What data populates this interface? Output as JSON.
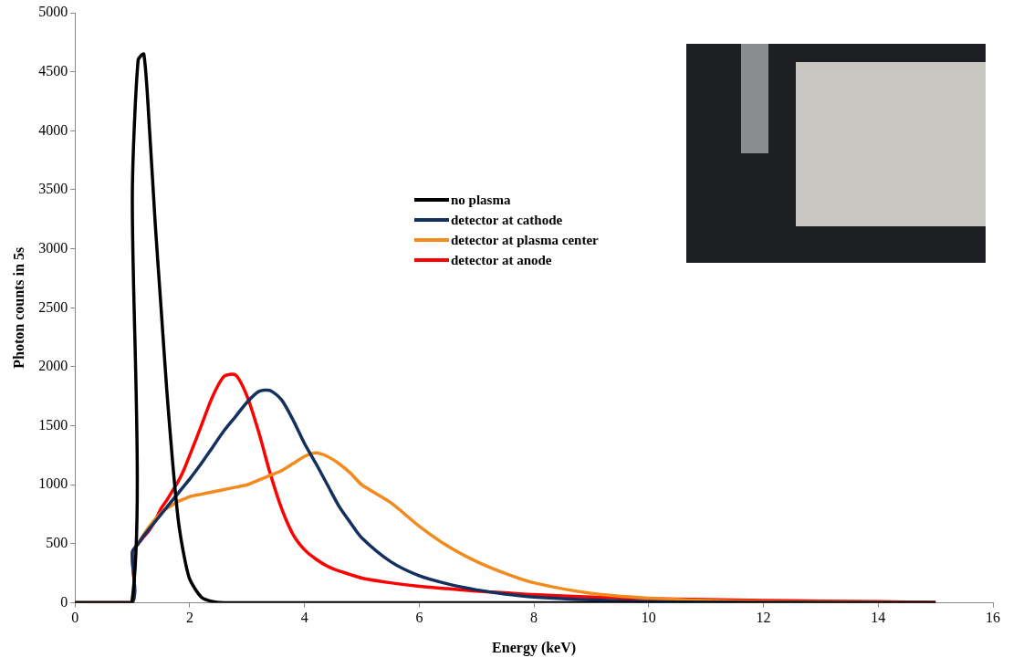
{
  "chart_data": {
    "type": "line",
    "x_label": "Energy (keV)",
    "y_label": "Photon counts in 5s",
    "x": [
      0,
      0.99,
      1.0,
      1.1,
      1.2,
      1.3,
      1.4,
      1.5,
      1.6,
      1.7,
      1.8,
      1.9,
      2.0,
      2.2,
      2.4,
      2.6,
      2.8,
      3.0,
      3.2,
      3.4,
      3.6,
      3.8,
      4.0,
      4.2,
      4.4,
      4.6,
      4.8,
      5.0,
      5.5,
      6,
      6.5,
      7,
      7.5,
      8,
      9,
      10,
      11,
      12,
      13,
      14,
      15
    ],
    "series": [
      {
        "name": "no plasma",
        "color": "#000000",
        "values": [
          0,
          0,
          3500,
          4600,
          4650,
          4000,
          3200,
          2500,
          1800,
          1200,
          700,
          400,
          200,
          50,
          10,
          0,
          0,
          0,
          0,
          0,
          0,
          0,
          0,
          0,
          0,
          0,
          0,
          0,
          0,
          0,
          0,
          0,
          0,
          0,
          0,
          0,
          0,
          0,
          0,
          0,
          0
        ]
      },
      {
        "name": "detector at cathode",
        "color": "#14305f",
        "values": [
          0,
          0,
          430,
          500,
          570,
          630,
          690,
          750,
          810,
          870,
          930,
          990,
          1050,
          1180,
          1320,
          1460,
          1580,
          1700,
          1790,
          1800,
          1720,
          1550,
          1350,
          1180,
          1000,
          820,
          680,
          550,
          350,
          230,
          160,
          110,
          75,
          50,
          25,
          10,
          5,
          3,
          1,
          0,
          0
        ]
      },
      {
        "name": "detector at plasma center",
        "color": "#f28a1e",
        "values": [
          0,
          0,
          420,
          500,
          580,
          650,
          710,
          760,
          800,
          830,
          860,
          880,
          900,
          920,
          940,
          960,
          980,
          1000,
          1040,
          1080,
          1120,
          1180,
          1240,
          1270,
          1240,
          1180,
          1100,
          1000,
          850,
          650,
          480,
          350,
          250,
          170,
          80,
          40,
          20,
          10,
          6,
          3,
          0
        ]
      },
      {
        "name": "detector at anode",
        "color": "#ff0000",
        "values": [
          0,
          0,
          430,
          500,
          560,
          620,
          700,
          800,
          870,
          950,
          1030,
          1130,
          1250,
          1500,
          1750,
          1920,
          1930,
          1750,
          1450,
          1100,
          800,
          580,
          450,
          370,
          310,
          270,
          240,
          210,
          170,
          140,
          120,
          100,
          85,
          70,
          50,
          35,
          28,
          20,
          15,
          10,
          5
        ]
      }
    ],
    "xlim": [
      0,
      16
    ],
    "xticks": [
      0,
      2,
      4,
      6,
      8,
      10,
      12,
      14,
      16
    ],
    "ylim": [
      0,
      5000
    ],
    "yticks": [
      0,
      500,
      1000,
      1500,
      2000,
      2500,
      3000,
      3500,
      4000,
      4500,
      5000
    ],
    "grid": false,
    "legend": "center"
  }
}
